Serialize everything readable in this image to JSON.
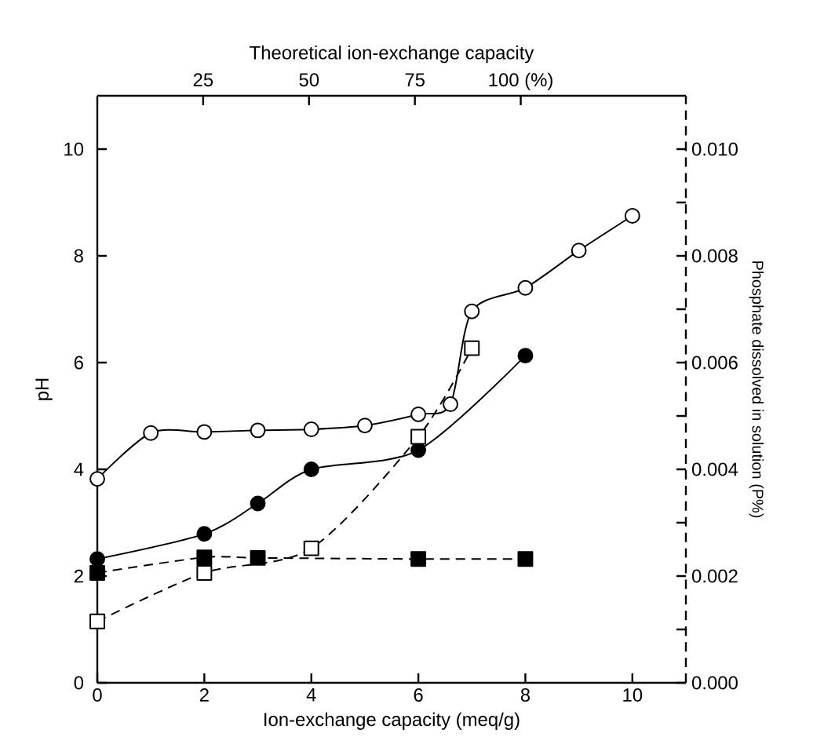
{
  "chart_data": {
    "type": "line",
    "x2label": "Theoretical ion-exchange capacity",
    "xlabel": "Ion-exchange capacity (meq/g)",
    "ylabel": "pH",
    "y2label": "Phosphate dissolved in solution (P%)",
    "xlim": [
      0,
      11
    ],
    "xticks": [
      0,
      2,
      4,
      6,
      8,
      10
    ],
    "x2lim": [
      0,
      139
    ],
    "x2ticks": [
      25,
      50,
      75,
      {
        "value": 100,
        "label": "100 (%)"
      }
    ],
    "ylim": [
      0,
      11
    ],
    "yticks": [
      0,
      2,
      4,
      6,
      8,
      10
    ],
    "y2lim": [
      0,
      0.011
    ],
    "y2ticks": [
      {
        "value": 0,
        "label": "0.000"
      },
      {
        "value": 0.001,
        "label": null
      },
      {
        "value": 0.002,
        "label": "0.002"
      },
      {
        "value": 0.003,
        "label": null
      },
      {
        "value": 0.004,
        "label": "0.004"
      },
      {
        "value": 0.005,
        "label": null
      },
      {
        "value": 0.006,
        "label": "0.006"
      },
      {
        "value": 0.007,
        "label": null
      },
      {
        "value": 0.008,
        "label": "0.008"
      },
      {
        "value": 0.009,
        "label": null
      },
      {
        "value": 0.01,
        "label": "0.010"
      }
    ],
    "series": [
      {
        "color": "#ffffff",
        "marker": "circle",
        "line_style": "solid",
        "x": [
          0,
          1,
          2,
          3,
          4,
          5,
          6,
          6.6,
          7,
          8,
          9,
          10
        ],
        "values": [
          3.82,
          4.68,
          4.7,
          4.73,
          4.75,
          4.82,
          5.03,
          5.22,
          6.96,
          7.4,
          8.1,
          8.75
        ]
      },
      {
        "color": "#000000",
        "marker": "circle",
        "line_style": "solid",
        "x": [
          0,
          2,
          3,
          4,
          6,
          8
        ],
        "values": [
          2.32,
          2.79,
          3.36,
          4.0,
          4.36,
          6.13
        ]
      },
      {
        "color": "#ffffff",
        "marker": "square",
        "line_style": "dashed",
        "axis": "y2",
        "x": [
          0,
          2,
          4,
          6,
          7
        ],
        "values": [
          0.00115,
          0.00206,
          0.00252,
          0.00461,
          0.00627
        ]
      },
      {
        "color": "#000000",
        "marker": "square",
        "line_style": "dashed",
        "axis": "y2",
        "x": [
          0,
          2,
          3,
          6,
          8
        ],
        "values": [
          0.00206,
          0.00235,
          0.00234,
          0.00232,
          0.00232
        ]
      }
    ]
  }
}
